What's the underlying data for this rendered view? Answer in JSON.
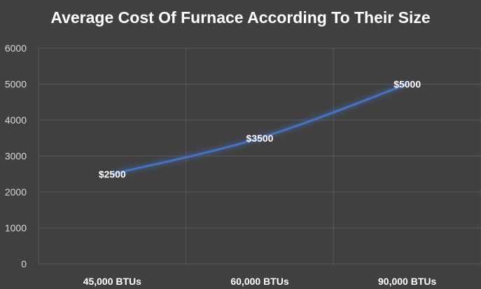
{
  "chart_data": {
    "type": "line",
    "title": "Average Cost Of Furnace According To Their Size",
    "categories": [
      "45,000 BTUs",
      "60,000 BTUs",
      "90,000 BTUs"
    ],
    "series": [
      {
        "values": [
          2500,
          3500,
          5000
        ],
        "data_labels": [
          "$2500",
          "$3500",
          "$5000"
        ],
        "color": "#4472c4"
      }
    ],
    "ylim": [
      0,
      6000
    ],
    "yticks": [
      "0",
      "1000",
      "2000",
      "3000",
      "4000",
      "5000",
      "6000"
    ],
    "grid": true,
    "legend": "none"
  }
}
